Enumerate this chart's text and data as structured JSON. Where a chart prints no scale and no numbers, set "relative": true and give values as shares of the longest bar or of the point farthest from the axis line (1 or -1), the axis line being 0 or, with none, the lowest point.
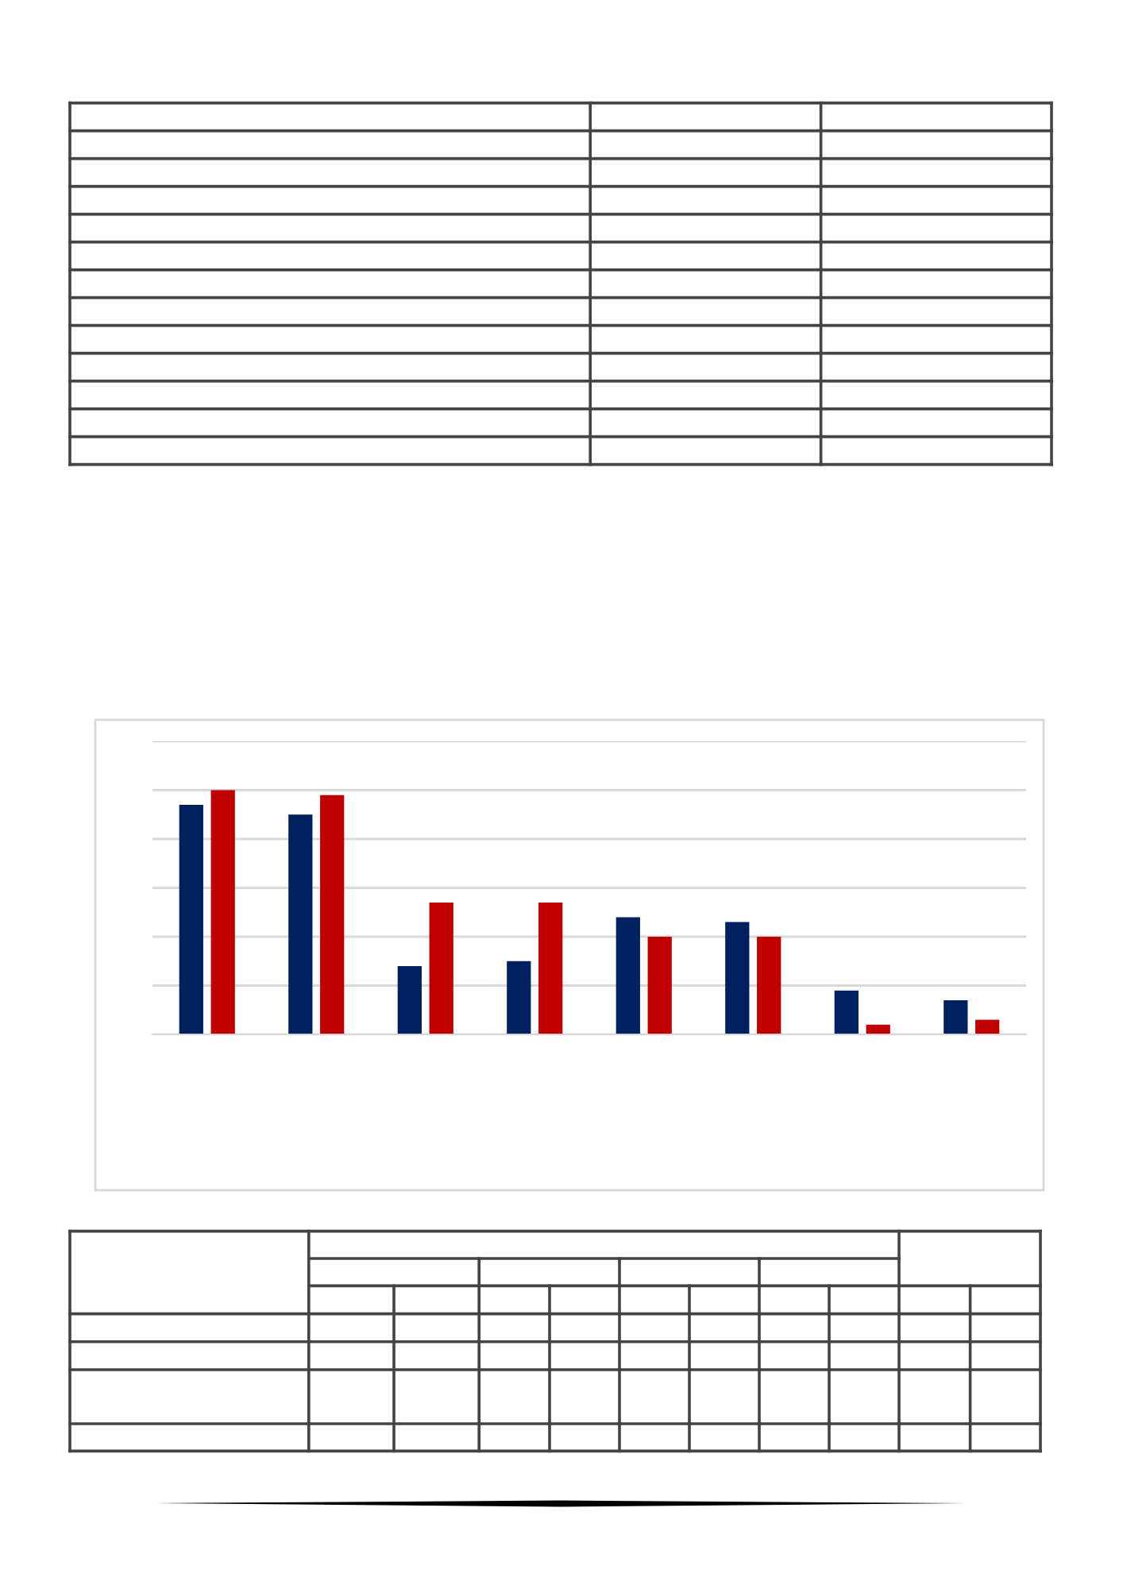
{
  "chart_data": {
    "type": "bar",
    "categories": [
      null,
      null,
      null,
      null,
      null,
      null,
      null,
      null
    ],
    "relative": true,
    "grid": "y",
    "series": [
      {
        "color": "#002060",
        "values": [
          0.94,
          0.9,
          0.28,
          0.3,
          0.48,
          0.46,
          0.18,
          0.14
        ]
      },
      {
        "color": "#c00000",
        "values": [
          1.0,
          0.98,
          0.54,
          0.54,
          0.4,
          0.4,
          0.04,
          0.06
        ]
      }
    ]
  }
}
